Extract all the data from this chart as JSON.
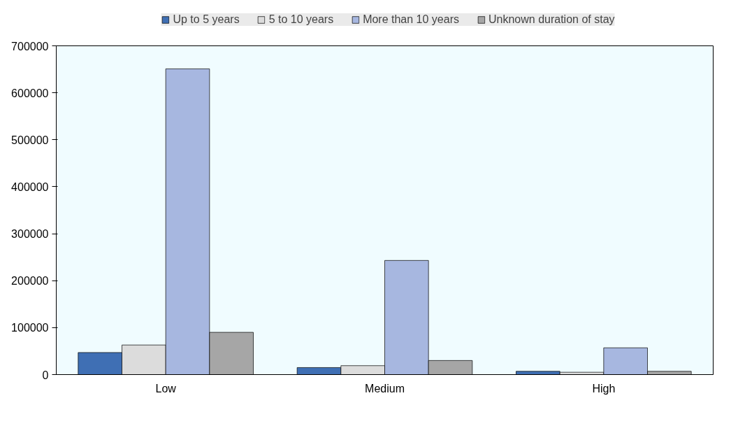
{
  "chart_data": {
    "type": "bar",
    "categories": [
      "Low",
      "Medium",
      "High"
    ],
    "series": [
      {
        "name": "Up to 5 years",
        "color": "#3f6fb4",
        "values": [
          47000,
          15000,
          7000
        ]
      },
      {
        "name": "5 to 10 years",
        "color": "#dcdcdc",
        "values": [
          63000,
          19000,
          5000
        ]
      },
      {
        "name": "More than 10 years",
        "color": "#a7b7e0",
        "values": [
          651000,
          243000,
          57000
        ]
      },
      {
        "name": "Unknown duration of stay",
        "color": "#a6a6a6",
        "values": [
          90000,
          30000,
          7000
        ]
      }
    ],
    "ylim": [
      0,
      700000
    ],
    "yticks": [
      0,
      100000,
      200000,
      300000,
      400000,
      500000,
      600000,
      700000
    ],
    "grid": false,
    "legend": "top"
  }
}
